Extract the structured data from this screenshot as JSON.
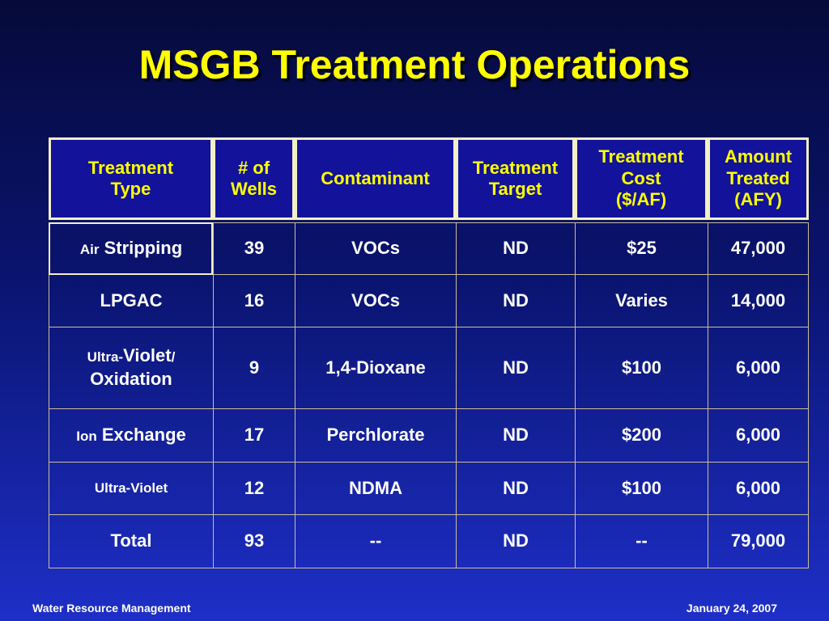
{
  "title": "MSGB Treatment Operations",
  "table": {
    "headers": [
      "Treatment\nType",
      "# of\nWells",
      "Contaminant",
      "Treatment\nTarget",
      "Treatment\nCost\n($/AF)",
      "Amount\nTreated\n(AFY)"
    ],
    "rows": [
      {
        "type_small": "Air",
        "type_main": "Stripping",
        "wells": "39",
        "contaminant": "VOCs",
        "target": "ND",
        "cost": "$25",
        "amount": "47,000"
      },
      {
        "type_main": "LPGAC",
        "wells": "16",
        "contaminant": "VOCs",
        "target": "ND",
        "cost": "Varies",
        "amount": "14,000"
      },
      {
        "type_small": "Ultra-",
        "type_main": "Violet",
        "type_small2": "/",
        "type_main2": "Oxidation",
        "wells": "9",
        "contaminant": "1,4-Dioxane",
        "target": "ND",
        "cost": "$100",
        "amount": "6,000"
      },
      {
        "type_small": "Ion",
        "type_main": "Exchange",
        "wells": "17",
        "contaminant": "Perchlorate",
        "target": "ND",
        "cost": "$200",
        "amount": "6,000"
      },
      {
        "type_small": "Ultra-Violet",
        "wells": "12",
        "contaminant": "NDMA",
        "target": "ND",
        "cost": "$100",
        "amount": "6,000"
      },
      {
        "type_main": "Total",
        "wells": "93",
        "contaminant": "--",
        "target": "ND",
        "cost": "--",
        "amount": "79,000"
      }
    ]
  },
  "footer": {
    "left": "Water Resource Management",
    "right": "January 24, 2007"
  },
  "colors": {
    "title": "#ffff00",
    "header_text": "#ffff00",
    "cell_text": "#ffffff",
    "border": "#f3f0c6",
    "background_top": "#060a3a",
    "background_bottom": "#1e2fc8"
  }
}
